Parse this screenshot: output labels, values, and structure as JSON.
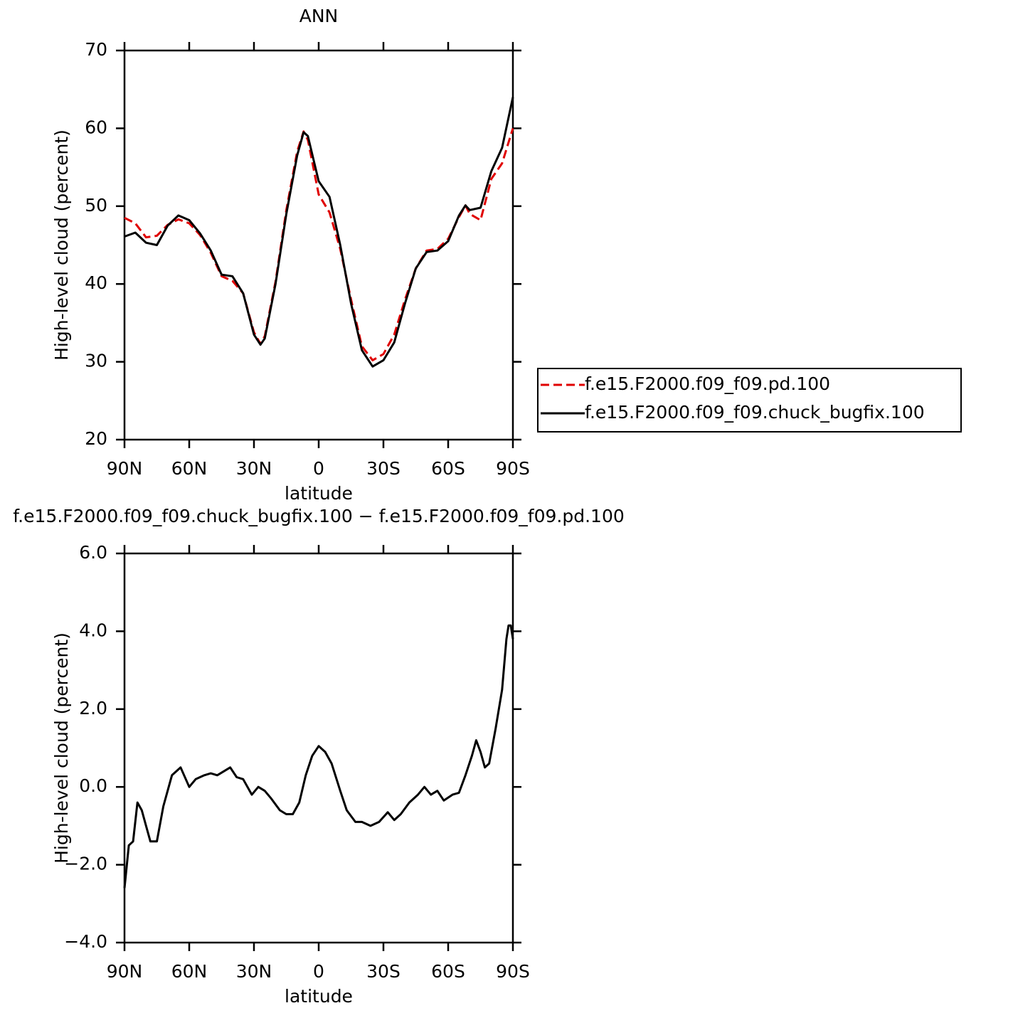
{
  "chart_data": [
    {
      "type": "line",
      "title": "ANN",
      "xlabel": "latitude",
      "ylabel": "High-level cloud (percent)",
      "x": [
        90,
        85,
        80,
        75,
        70,
        65,
        60,
        55,
        50,
        45,
        40,
        35,
        30,
        27,
        25,
        20,
        15,
        10,
        7,
        5,
        0,
        -5,
        -10,
        -15,
        -20,
        -25,
        -30,
        -35,
        -40,
        -45,
        -50,
        -55,
        -60,
        -65,
        -68,
        -70,
        -75,
        -80,
        -85,
        -90
      ],
      "series": [
        {
          "name": "f.e15.F2000.f09_f09.pd.100",
          "color": "#e00000",
          "dash": "dashed",
          "values": [
            48.5,
            47.8,
            46.0,
            46.2,
            47.6,
            48.3,
            47.8,
            46.3,
            44.0,
            41.0,
            40.4,
            38.8,
            33.8,
            32.3,
            33.3,
            40.3,
            49.5,
            57,
            59.6,
            58.5,
            51.5,
            49.2,
            44.5,
            38,
            32,
            30.2,
            31.0,
            33.5,
            38,
            42.0,
            44.3,
            44.5,
            45.8,
            48.6,
            50.1,
            49.0,
            48.2,
            53.5,
            55.5,
            60
          ]
        },
        {
          "name": "f.e15.F2000.f09_f09.chuck_bugfix.100",
          "color": "#000000",
          "dash": "solid",
          "values": [
            46.1,
            46.6,
            45.3,
            45.0,
            47.5,
            48.8,
            48.2,
            46.5,
            44.3,
            41.2,
            41.0,
            38.8,
            33.5,
            32.2,
            33.0,
            40.0,
            49.0,
            56.5,
            59.5,
            59.0,
            53.2,
            51.2,
            45.0,
            37.5,
            31.5,
            29.4,
            30.2,
            32.5,
            37.5,
            42.0,
            44.1,
            44.3,
            45.5,
            48.8,
            50.1,
            49.5,
            49.8,
            54.5,
            57.5,
            64
          ]
        }
      ],
      "xlim": [
        90,
        -90
      ],
      "xticks": [
        {
          "value": 90,
          "label": "90N"
        },
        {
          "value": 60,
          "label": "60N"
        },
        {
          "value": 30,
          "label": "30N"
        },
        0,
        {
          "value": -30,
          "label": "30S"
        },
        {
          "value": -60,
          "label": "60S"
        },
        {
          "value": -90,
          "label": "90S"
        }
      ],
      "ylim": [
        20,
        70
      ],
      "yticks": [
        20,
        30,
        40,
        50,
        60,
        70
      ],
      "legend": "right"
    },
    {
      "type": "line",
      "title": "f.e15.F2000.f09_f09.chuck_bugfix.100 − f.e15.F2000.f09_f09.pd.100",
      "xlabel": "latitude",
      "ylabel": "High-level cloud (percent)",
      "x": [
        90,
        88,
        86,
        84,
        82,
        80,
        78,
        75,
        72,
        68,
        66,
        64,
        60,
        57,
        53,
        50,
        47,
        44,
        41,
        38,
        35,
        31,
        28,
        25,
        22,
        18,
        15,
        12,
        9,
        6,
        3,
        0,
        -3,
        -6,
        -10,
        -13,
        -17,
        -20,
        -24,
        -28,
        -32,
        -35,
        -38,
        -42,
        -46,
        -49,
        -52,
        -55,
        -58,
        -62,
        -65,
        -68,
        -71,
        -73,
        -75,
        -77,
        -79,
        -82,
        -85,
        -87,
        -88,
        -89,
        -90
      ],
      "series": [
        {
          "color": "#000000",
          "dash": "solid",
          "values": [
            -2.6,
            -1.5,
            -1.4,
            -0.4,
            -0.6,
            -1.0,
            -1.4,
            -1.4,
            -0.5,
            0.3,
            0.4,
            0.5,
            0.0,
            0.2,
            0.3,
            0.35,
            0.3,
            0.4,
            0.5,
            0.25,
            0.2,
            -0.2,
            0.0,
            -0.1,
            -0.3,
            -0.6,
            -0.7,
            -0.7,
            -0.4,
            0.3,
            0.8,
            1.05,
            0.9,
            0.6,
            -0.1,
            -0.6,
            -0.9,
            -0.9,
            -1.0,
            -0.9,
            -0.65,
            -0.85,
            -0.7,
            -0.4,
            -0.2,
            0.0,
            -0.2,
            -0.1,
            -0.35,
            -0.2,
            -0.15,
            0.3,
            0.8,
            1.2,
            0.9,
            0.5,
            0.6,
            1.5,
            2.5,
            3.8,
            4.15,
            4.15,
            3.8
          ]
        }
      ],
      "xlim": [
        90,
        -90
      ],
      "xticks": [
        {
          "value": 90,
          "label": "90N"
        },
        {
          "value": 60,
          "label": "60N"
        },
        {
          "value": 30,
          "label": "30N"
        },
        0,
        {
          "value": -30,
          "label": "30S"
        },
        {
          "value": -60,
          "label": "60S"
        },
        {
          "value": -90,
          "label": "90S"
        }
      ],
      "ylim": [
        -4,
        6
      ],
      "yticks": [
        {
          "value": -4,
          "label": "−4.0"
        },
        {
          "value": -2,
          "label": "−2.0"
        },
        {
          "value": 0,
          "label": "0.0"
        },
        {
          "value": 2,
          "label": "2.0"
        },
        {
          "value": 4,
          "label": "4.0"
        },
        {
          "value": 6,
          "label": "6.0"
        }
      ]
    }
  ]
}
